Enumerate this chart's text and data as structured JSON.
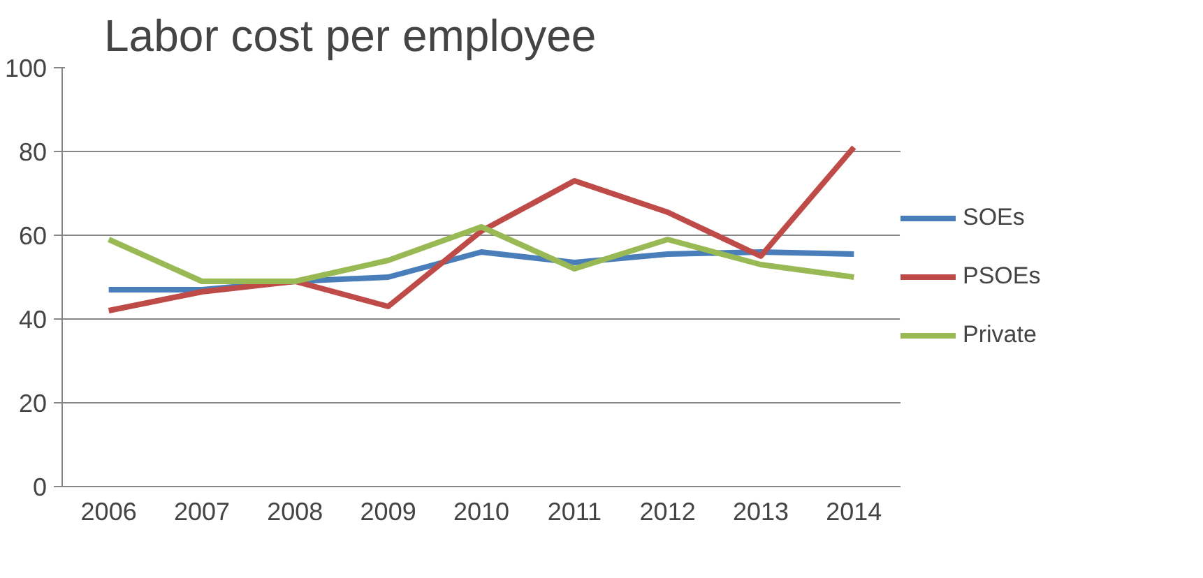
{
  "chart_data": {
    "type": "line",
    "title": "Labor cost per employee",
    "categories": [
      "2006",
      "2007",
      "2008",
      "2009",
      "2010",
      "2011",
      "2012",
      "2013",
      "2014"
    ],
    "series": [
      {
        "name": "SOEs",
        "color": "#4a7ebb",
        "values": [
          47,
          47,
          49,
          50,
          56,
          53.5,
          55.5,
          56,
          55.5
        ]
      },
      {
        "name": "PSOEs",
        "color": "#be4b48",
        "values": [
          42,
          46.5,
          49,
          43,
          61,
          73,
          65.5,
          55,
          81
        ]
      },
      {
        "name": "Private",
        "color": "#98b954",
        "values": [
          59,
          49,
          49,
          54,
          62,
          52,
          59,
          53,
          50
        ]
      }
    ],
    "ylim": [
      0,
      100
    ],
    "yticks": [
      0,
      20,
      40,
      60,
      80,
      100
    ],
    "grid": "y",
    "legend": "right",
    "marker": "none",
    "line_style": "solid"
  }
}
